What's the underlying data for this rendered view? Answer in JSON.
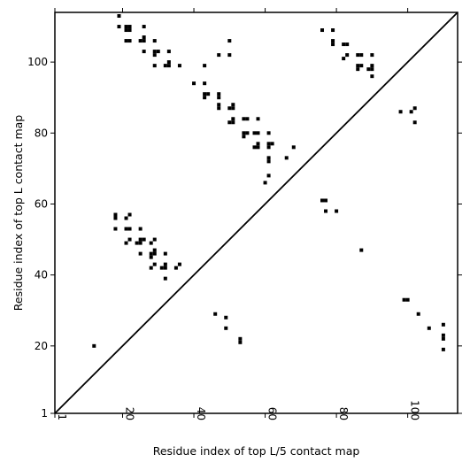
{
  "chart_data": {
    "type": "scatter",
    "title": "",
    "xlabel": "Residue index of top L/5 contact map",
    "ylabel": "Residue index of top L contact map",
    "xlim": [
      1,
      114
    ],
    "ylim": [
      1,
      114
    ],
    "x_ticks": [
      1,
      20,
      40,
      60,
      80,
      100
    ],
    "y_ticks": [
      1,
      20,
      40,
      60,
      80,
      100
    ],
    "x_tick_rotation": 90,
    "diagonal_line": true,
    "grid": false,
    "marker": "square",
    "color": "#000000",
    "series": [
      {
        "values_upper_left": [
          [
            19,
            113
          ],
          [
            19,
            110
          ],
          [
            21,
            110
          ],
          [
            22,
            110
          ],
          [
            21,
            109
          ],
          [
            22,
            109
          ],
          [
            26,
            110
          ],
          [
            26,
            107
          ],
          [
            25,
            106
          ],
          [
            26,
            106
          ],
          [
            21,
            106
          ],
          [
            22,
            106
          ],
          [
            29,
            106
          ],
          [
            29,
            103
          ],
          [
            30,
            103
          ],
          [
            29,
            102
          ],
          [
            33,
            103
          ],
          [
            26,
            103
          ],
          [
            33,
            100
          ],
          [
            32,
            99
          ],
          [
            33,
            99
          ],
          [
            29,
            99
          ],
          [
            36,
            99
          ],
          [
            43,
            99
          ],
          [
            47,
            102
          ],
          [
            50,
            102
          ],
          [
            50,
            106
          ],
          [
            40,
            94
          ],
          [
            43,
            94
          ],
          [
            43,
            91
          ],
          [
            44,
            91
          ],
          [
            43,
            90
          ],
          [
            47,
            91
          ],
          [
            47,
            90
          ],
          [
            47,
            88
          ],
          [
            47,
            87
          ],
          [
            51,
            88
          ],
          [
            50,
            87
          ],
          [
            51,
            87
          ],
          [
            51,
            84
          ],
          [
            50,
            83
          ],
          [
            51,
            83
          ],
          [
            54,
            84
          ],
          [
            55,
            84
          ],
          [
            58,
            84
          ],
          [
            54,
            80
          ],
          [
            55,
            80
          ],
          [
            57,
            80
          ],
          [
            58,
            80
          ],
          [
            54,
            79
          ],
          [
            61,
            80
          ],
          [
            58,
            77
          ],
          [
            61,
            77
          ],
          [
            62,
            77
          ],
          [
            57,
            76
          ],
          [
            58,
            76
          ],
          [
            61,
            76
          ],
          [
            61,
            73
          ],
          [
            61,
            72
          ],
          [
            66,
            73
          ],
          [
            68,
            76
          ],
          [
            60,
            66
          ],
          [
            61,
            68
          ],
          [
            76,
            109
          ],
          [
            79,
            109
          ],
          [
            79,
            106
          ],
          [
            79,
            105
          ],
          [
            82,
            105
          ],
          [
            83,
            105
          ],
          [
            82,
            101
          ],
          [
            83,
            102
          ],
          [
            86,
            102
          ],
          [
            87,
            102
          ],
          [
            90,
            102
          ],
          [
            86,
            99
          ],
          [
            87,
            99
          ],
          [
            86,
            98
          ],
          [
            89,
            98
          ],
          [
            90,
            98
          ],
          [
            90,
            99
          ],
          [
            90,
            96
          ],
          [
            98,
            86
          ],
          [
            101,
            86
          ],
          [
            102,
            87
          ],
          [
            102,
            83
          ]
        ],
        "values_lower_right": [
          [
            12,
            20
          ],
          [
            18,
            57
          ],
          [
            18,
            56
          ],
          [
            18,
            53
          ],
          [
            21,
            56
          ],
          [
            22,
            57
          ],
          [
            21,
            53
          ],
          [
            22,
            53
          ],
          [
            25,
            53
          ],
          [
            22,
            50
          ],
          [
            21,
            49
          ],
          [
            24,
            49
          ],
          [
            25,
            50
          ],
          [
            26,
            50
          ],
          [
            25,
            49
          ],
          [
            28,
            49
          ],
          [
            29,
            50
          ],
          [
            29,
            47
          ],
          [
            28,
            46
          ],
          [
            29,
            46
          ],
          [
            28,
            45
          ],
          [
            25,
            46
          ],
          [
            29,
            43
          ],
          [
            28,
            42
          ],
          [
            31,
            42
          ],
          [
            32,
            42
          ],
          [
            32,
            43
          ],
          [
            32,
            46
          ],
          [
            35,
            42
          ],
          [
            36,
            43
          ],
          [
            32,
            39
          ],
          [
            46,
            29
          ],
          [
            49,
            28
          ],
          [
            49,
            25
          ],
          [
            53,
            22
          ],
          [
            53,
            21
          ],
          [
            76,
            61
          ],
          [
            77,
            61
          ],
          [
            77,
            58
          ],
          [
            80,
            58
          ],
          [
            87,
            47
          ],
          [
            99,
            33
          ],
          [
            100,
            33
          ],
          [
            103,
            29
          ],
          [
            106,
            25
          ],
          [
            110,
            26
          ],
          [
            110,
            23
          ],
          [
            110,
            22
          ],
          [
            110,
            19
          ]
        ]
      }
    ]
  }
}
